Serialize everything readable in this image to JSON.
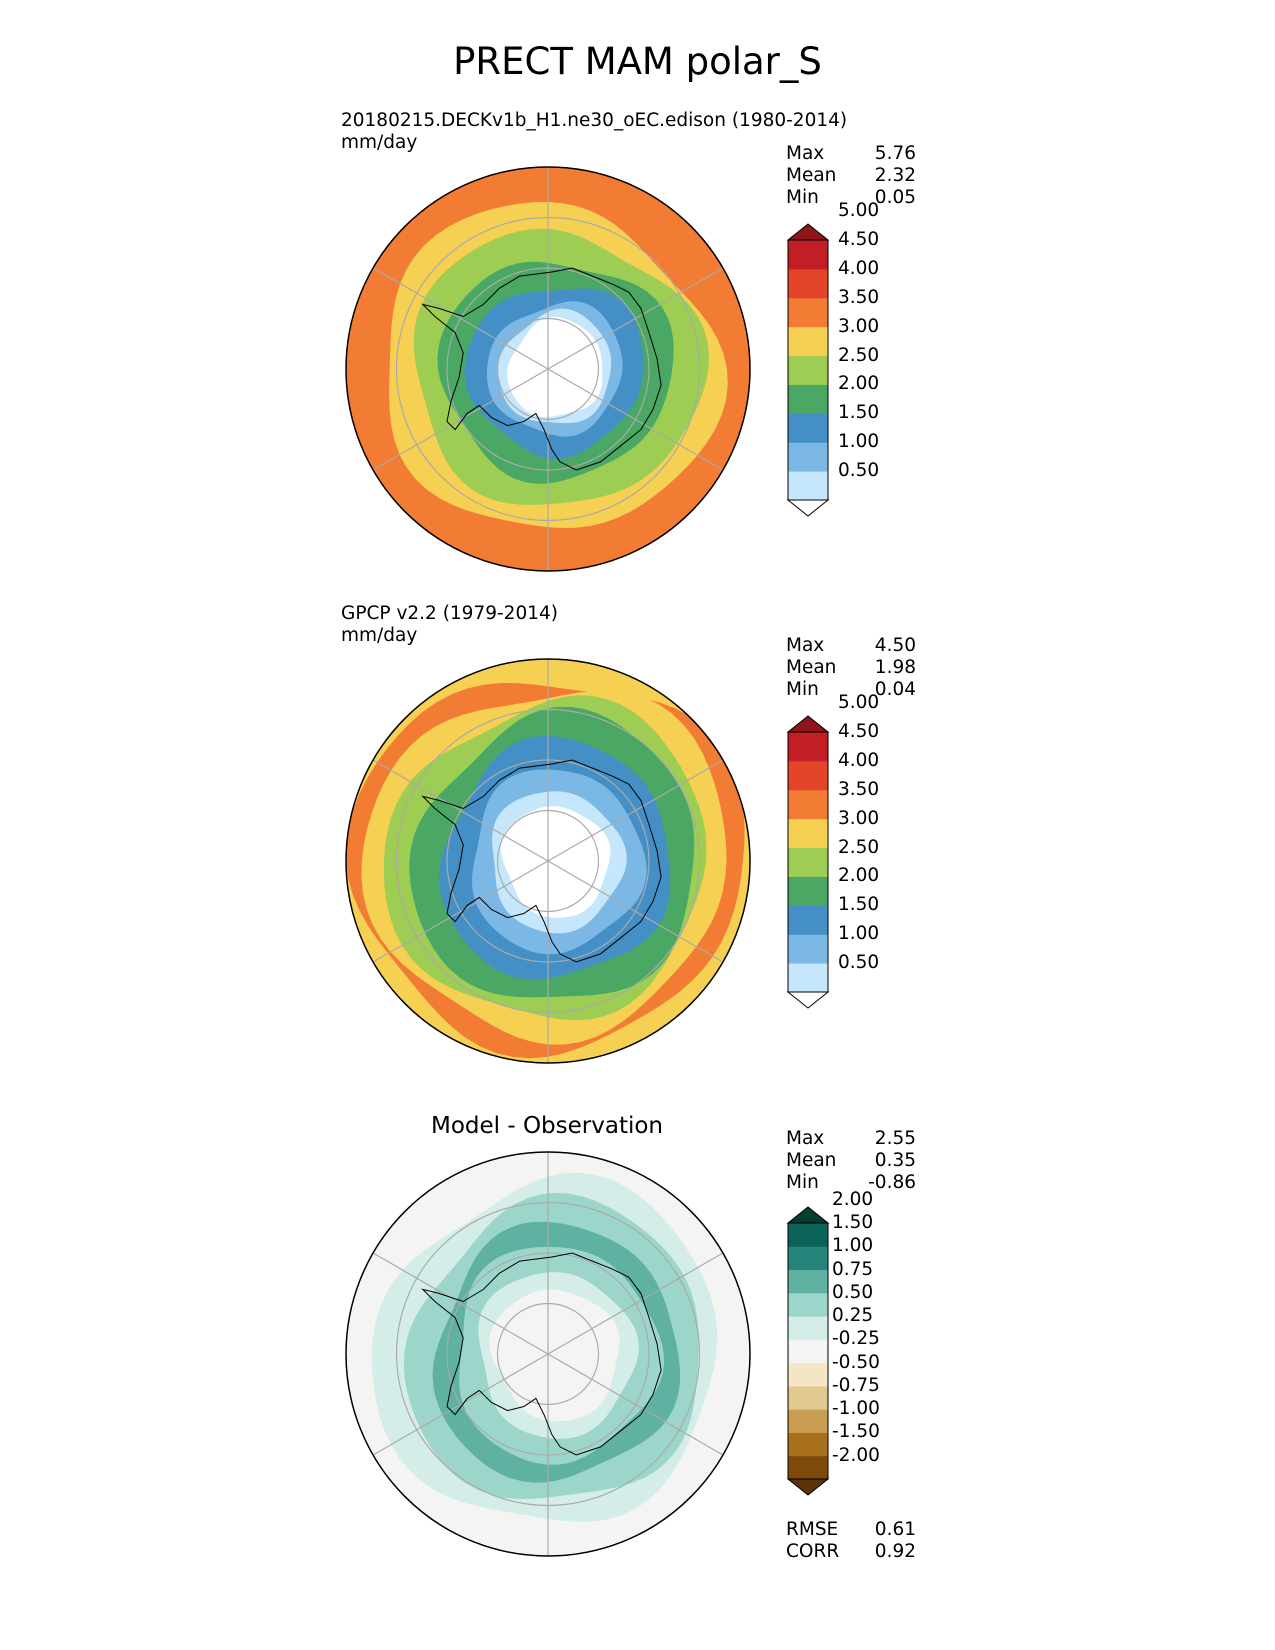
{
  "title": "PRECT MAM polar_S",
  "colors": {
    "prect": [
      "#ffffff",
      "#c6e7fb",
      "#7bb8e6",
      "#4490c6",
      "#4aa764",
      "#9dcd53",
      "#f6d052",
      "#f27c34",
      "#e2452a",
      "#c21e26",
      "#8e1519"
    ],
    "diff": [
      "#5a3306",
      "#7e4a0b",
      "#a8701d",
      "#c99e52",
      "#e2c98f",
      "#f4e6c5",
      "#f4f4f2",
      "#d5ede8",
      "#9cd6cb",
      "#5fb1a2",
      "#25857b",
      "#0b6256",
      "#063d31"
    ],
    "coast": "#000000",
    "grid": "#aaaaaa"
  },
  "panels": [
    {
      "title": "20180215.DECKv1b_H1.ne30_oEC.edison (1980-2014)",
      "units": "mm/day",
      "stats": [
        {
          "label": "Max",
          "value": "5.76"
        },
        {
          "label": "Mean",
          "value": "2.32"
        },
        {
          "label": "Min",
          "value": "0.05"
        }
      ],
      "colorbar": [
        "0.50",
        "1.00",
        "1.50",
        "2.00",
        "2.50",
        "3.00",
        "3.50",
        "4.00",
        "4.50",
        "5.00"
      ],
      "field": [
        {
          "r": 1.0,
          "level": 7
        },
        {
          "r": 0.82,
          "level": 6
        },
        {
          "r": 0.7,
          "level": 5
        },
        {
          "r": 0.56,
          "level": 4
        },
        {
          "r": 0.43,
          "level": 3
        },
        {
          "r": 0.33,
          "level": 2
        },
        {
          "r": 0.28,
          "level": 1
        },
        {
          "r": 0.24,
          "level": 0
        }
      ]
    },
    {
      "title": "GPCP v2.2 (1979-2014)",
      "units": "mm/day",
      "stats": [
        {
          "label": "Max",
          "value": "4.50"
        },
        {
          "label": "Mean",
          "value": "1.98"
        },
        {
          "label": "Min",
          "value": "0.04"
        }
      ],
      "colorbar": [
        "0.50",
        "1.00",
        "1.50",
        "2.00",
        "2.50",
        "3.00",
        "3.50",
        "4.00",
        "4.50",
        "5.00"
      ],
      "field": [
        {
          "r": 1.0,
          "level": 6
        },
        {
          "r": 0.95,
          "level": 7
        },
        {
          "r": 0.88,
          "level": 6
        },
        {
          "r": 0.79,
          "level": 5
        },
        {
          "r": 0.71,
          "level": 4
        },
        {
          "r": 0.58,
          "level": 3
        },
        {
          "r": 0.44,
          "level": 2
        },
        {
          "r": 0.34,
          "level": 1
        },
        {
          "r": 0.27,
          "level": 0
        }
      ]
    },
    {
      "title": "Model - Observation",
      "stats": [
        {
          "label": "Max",
          "value": "2.55"
        },
        {
          "label": "Mean",
          "value": "0.35"
        },
        {
          "label": "Min",
          "value": "-0.86"
        }
      ],
      "colorbar": [
        "-2.00",
        "-1.50",
        "-1.00",
        "-0.75",
        "-0.50",
        "-0.25",
        "0.25",
        "0.50",
        "0.75",
        "1.00",
        "1.50",
        "2.00"
      ],
      "metrics": [
        {
          "label": "RMSE",
          "value": "0.61"
        },
        {
          "label": "CORR",
          "value": "0.92"
        }
      ],
      "field": [
        {
          "r": 1.0,
          "level": 6
        },
        {
          "r": 0.85,
          "level": 7
        },
        {
          "r": 0.74,
          "level": 8
        },
        {
          "r": 0.62,
          "level": 9
        },
        {
          "r": 0.52,
          "level": 8
        },
        {
          "r": 0.4,
          "level": 7
        },
        {
          "r": 0.32,
          "level": 6
        }
      ]
    }
  ]
}
